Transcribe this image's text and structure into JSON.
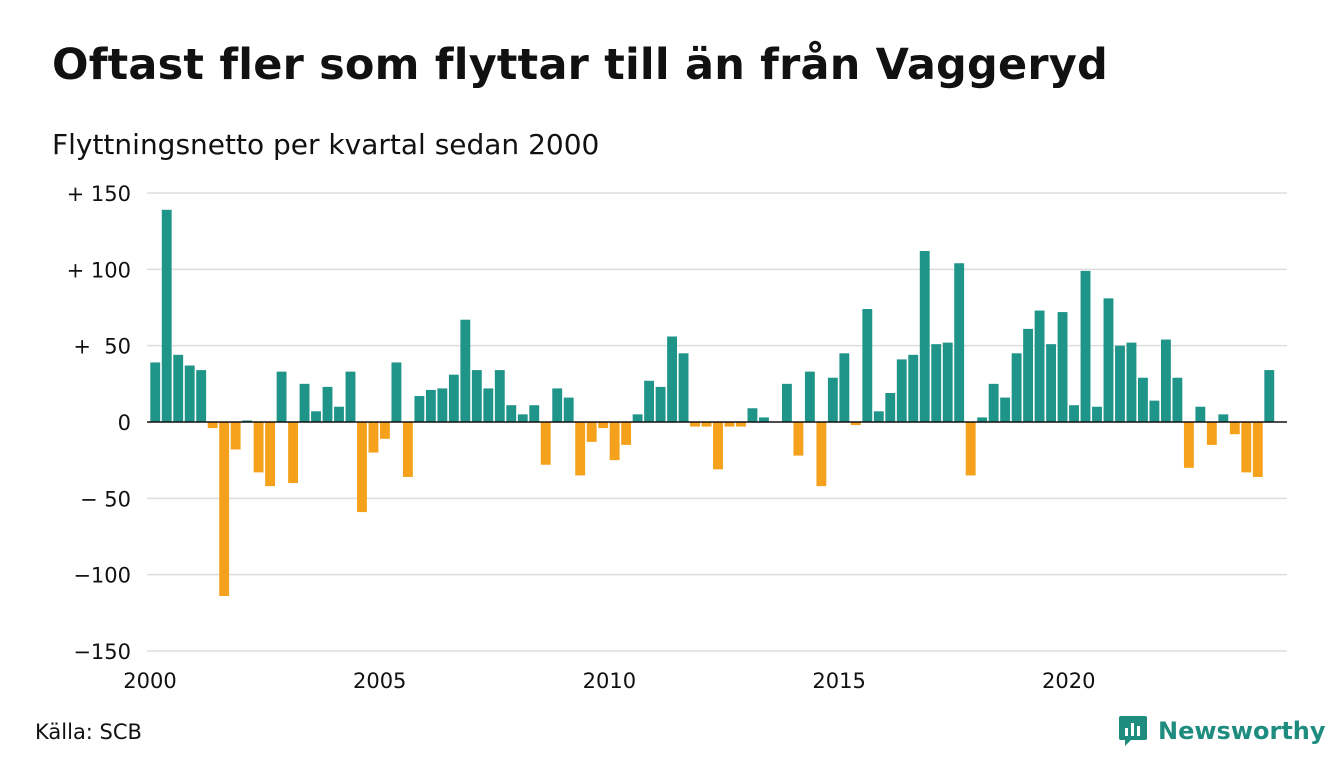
{
  "header": {
    "title": "Oftast fler som flyttar till än från Vaggeryd",
    "subtitle": "Flyttningsnetto per kvartal sedan 2000"
  },
  "footer": {
    "source": "Källa: SCB",
    "logo_text": "Newsworthy"
  },
  "colors": {
    "positive": "#1f958a",
    "negative": "#f5a11c",
    "grid": "#dddddd",
    "logo": "#1f8c80"
  },
  "chart_data": {
    "type": "bar",
    "title": "Oftast fler som flyttar till än från Vaggeryd",
    "subtitle": "Flyttningsnetto per kvartal sedan 2000",
    "xlabel": "",
    "ylabel": "",
    "ylim": [
      -150,
      150
    ],
    "xlim": [
      2000,
      2024.75
    ],
    "grid": true,
    "y_ticks": [
      {
        "value": 150,
        "label": "+ 150"
      },
      {
        "value": 100,
        "label": "+ 100"
      },
      {
        "value": 50,
        "label": "+  50"
      },
      {
        "value": 0,
        "label": "0"
      },
      {
        "value": -50,
        "label": "− 50"
      },
      {
        "value": -100,
        "label": "−100"
      },
      {
        "value": -150,
        "label": "−150"
      }
    ],
    "x_ticks": [
      {
        "value": 2000,
        "label": "2000"
      },
      {
        "value": 2005,
        "label": "2005"
      },
      {
        "value": 2010,
        "label": "2010"
      },
      {
        "value": 2015,
        "label": "2015"
      },
      {
        "value": 2020,
        "label": "2020"
      }
    ],
    "x_first": 2000.0,
    "x_step": 0.25,
    "values": [
      39,
      139,
      44,
      37,
      34,
      -4,
      -114,
      -18,
      1,
      -33,
      -42,
      33,
      -40,
      25,
      7,
      23,
      10,
      33,
      -59,
      -20,
      -11,
      39,
      -36,
      17,
      21,
      22,
      31,
      67,
      34,
      22,
      34,
      11,
      5,
      11,
      -28,
      22,
      16,
      -35,
      -13,
      -4,
      -25,
      -15,
      5,
      27,
      23,
      56,
      45,
      -3,
      -3,
      -31,
      -3,
      -3,
      9,
      3,
      0,
      25,
      -22,
      33,
      -42,
      29,
      45,
      -2,
      74,
      7,
      19,
      41,
      44,
      112,
      51,
      52,
      104,
      -35,
      3,
      25,
      16,
      45,
      61,
      73,
      51,
      72,
      11,
      99,
      10,
      81,
      50,
      52,
      29,
      14,
      54,
      29,
      -30,
      10,
      -15,
      5,
      -8,
      -33,
      -36,
      34
    ]
  }
}
